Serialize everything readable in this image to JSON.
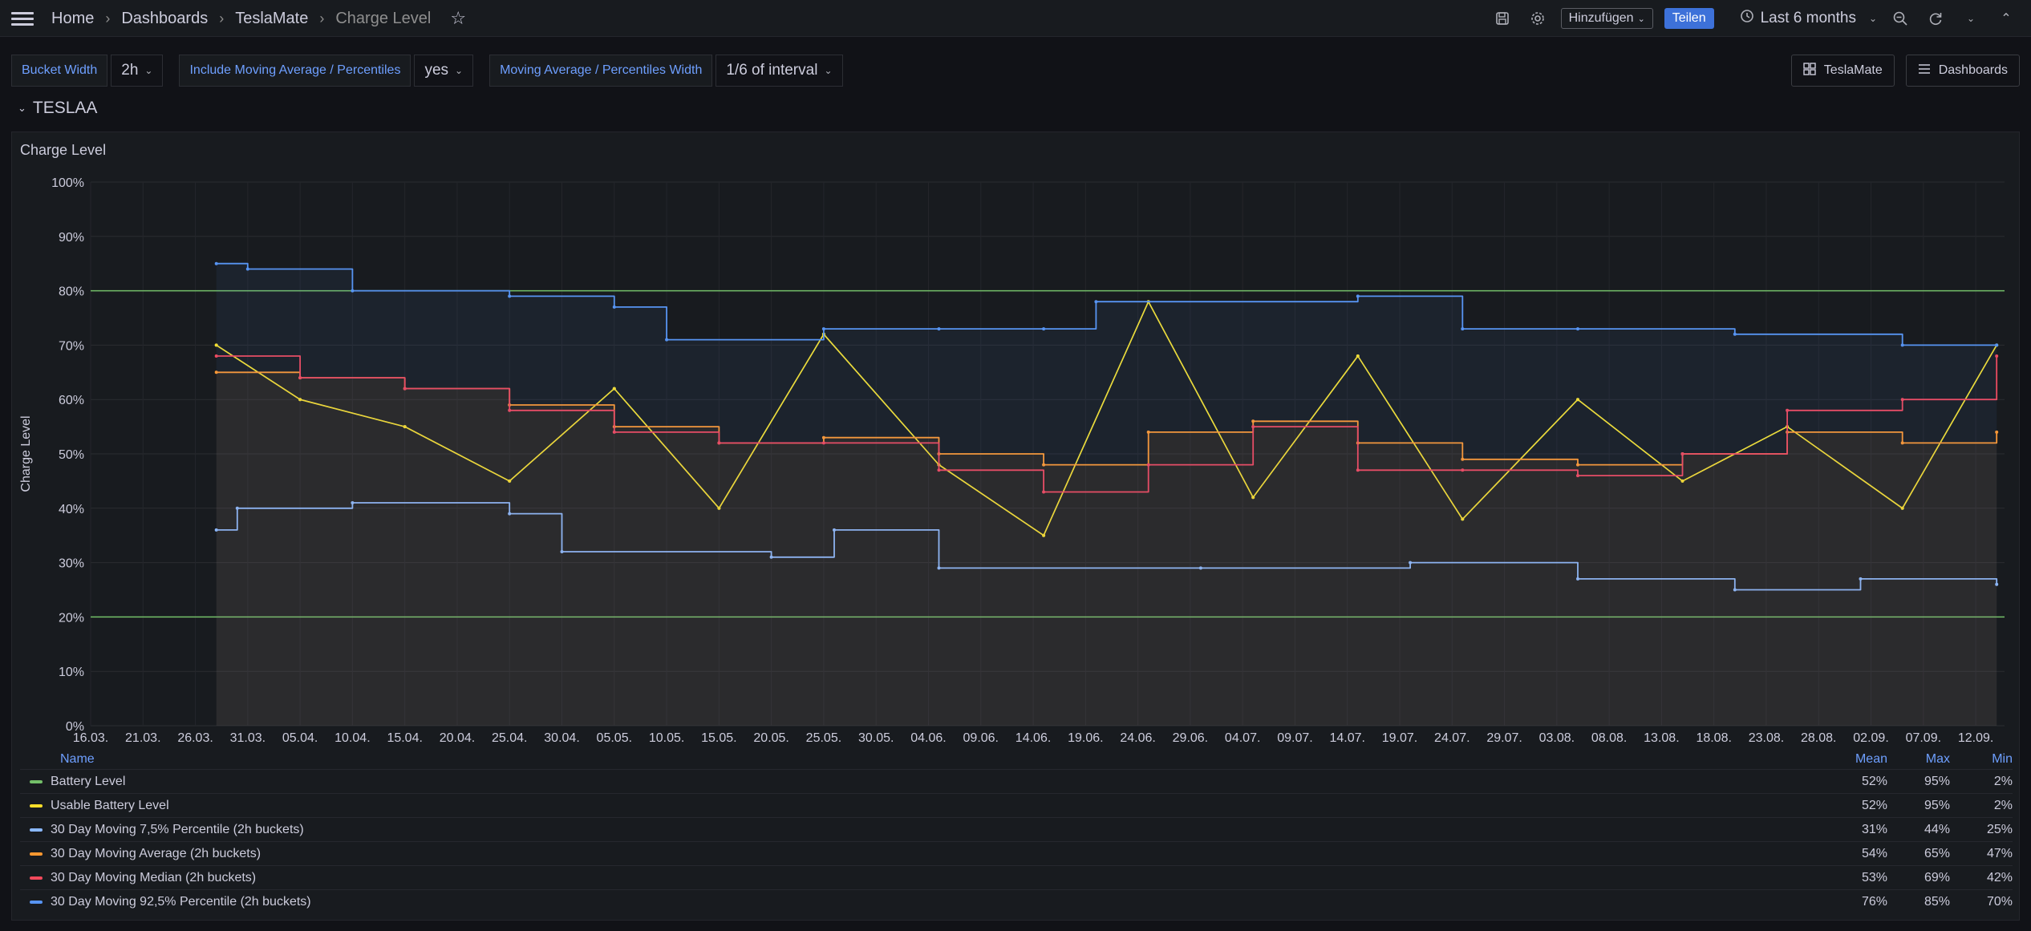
{
  "topbar": {
    "breadcrumbs": [
      "Home",
      "Dashboards",
      "TeslaMate",
      "Charge Level"
    ],
    "add_label": "Hinzufügen",
    "share_label": "Teilen",
    "time_range": "Last 6 months"
  },
  "variables": [
    {
      "label": "Bucket Width",
      "value": "2h"
    },
    {
      "label": "Include Moving Average / Percentiles",
      "value": "yes"
    },
    {
      "label": "Moving Average / Percentiles Width",
      "value": "1/6 of interval"
    }
  ],
  "links": [
    "TeslaMate",
    "Dashboards"
  ],
  "row": {
    "title": "TESLAA"
  },
  "panel": {
    "title": "Charge Level"
  },
  "chart_data": {
    "type": "line",
    "title": "Charge Level",
    "ylabel": "Charge Level",
    "ylim": [
      0,
      100
    ],
    "y_ticks": [
      "0%",
      "10%",
      "20%",
      "30%",
      "40%",
      "50%",
      "60%",
      "70%",
      "80%",
      "90%",
      "100%"
    ],
    "x_ticks": [
      "16.03.",
      "21.03.",
      "26.03.",
      "31.03.",
      "05.04.",
      "10.04.",
      "15.04.",
      "20.04.",
      "25.04.",
      "30.04.",
      "05.05.",
      "10.05.",
      "15.05.",
      "20.05.",
      "25.05.",
      "30.05.",
      "04.06.",
      "09.06.",
      "14.06.",
      "19.06.",
      "24.06.",
      "29.06.",
      "04.07.",
      "09.07.",
      "14.07.",
      "19.07.",
      "24.07.",
      "29.07.",
      "03.08.",
      "08.08.",
      "13.08.",
      "18.08.",
      "23.08.",
      "28.08.",
      "02.09.",
      "07.09.",
      "12.09."
    ],
    "thresholds": [
      20,
      80
    ],
    "series": [
      {
        "name": "Battery Level",
        "color": "#73bf69",
        "x": [
          "28.03.",
          "05.04.",
          "15.04.",
          "25.04.",
          "05.05.",
          "15.05.",
          "25.05.",
          "05.06.",
          "15.06.",
          "25.06.",
          "05.07.",
          "15.07.",
          "25.07.",
          "05.08.",
          "15.08.",
          "25.08.",
          "05.09.",
          "14.09."
        ],
        "values": [
          70,
          60,
          55,
          45,
          62,
          40,
          72,
          48,
          35,
          78,
          42,
          68,
          38,
          60,
          45,
          55,
          40,
          70
        ]
      },
      {
        "name": "Usable Battery Level",
        "color": "#fade2a",
        "x": [
          "28.03.",
          "05.04.",
          "15.04.",
          "25.04.",
          "05.05.",
          "15.05.",
          "25.05.",
          "05.06.",
          "15.06.",
          "25.06.",
          "05.07.",
          "15.07.",
          "25.07.",
          "05.08.",
          "15.08.",
          "25.08.",
          "05.09.",
          "14.09."
        ],
        "values": [
          70,
          60,
          55,
          45,
          62,
          40,
          72,
          48,
          35,
          78,
          42,
          68,
          38,
          60,
          45,
          55,
          40,
          70
        ]
      },
      {
        "name": "30 Day Moving 7,5% Percentile (2h buckets)",
        "color": "#8ab8ff",
        "x": [
          "28.03.",
          "30.03.",
          "10.04.",
          "25.04.",
          "30.04.",
          "20.05.",
          "26.05.",
          "05.06.",
          "30.06.",
          "20.07.",
          "05.08.",
          "20.08.",
          "01.09.",
          "14.09."
        ],
        "values": [
          36,
          40,
          41,
          39,
          32,
          31,
          36,
          29,
          29,
          30,
          27,
          25,
          27,
          26
        ]
      },
      {
        "name": "30 Day Moving Average (2h buckets)",
        "color": "#ff9830",
        "x": [
          "28.03.",
          "05.04.",
          "15.04.",
          "25.04.",
          "05.05.",
          "15.05.",
          "25.05.",
          "05.06.",
          "15.06.",
          "25.06.",
          "05.07.",
          "15.07.",
          "25.07.",
          "05.08.",
          "15.08.",
          "25.08.",
          "05.09.",
          "14.09."
        ],
        "values": [
          65,
          64,
          62,
          59,
          55,
          52,
          53,
          50,
          48,
          54,
          56,
          52,
          49,
          48,
          50,
          54,
          52,
          54
        ]
      },
      {
        "name": "30 Day Moving Median (2h buckets)",
        "color": "#f2495c",
        "x": [
          "28.03.",
          "05.04.",
          "15.04.",
          "25.04.",
          "05.05.",
          "15.05.",
          "25.05.",
          "05.06.",
          "15.06.",
          "25.06.",
          "05.07.",
          "15.07.",
          "25.07.",
          "05.08.",
          "15.08.",
          "25.08.",
          "05.09.",
          "14.09."
        ],
        "values": [
          68,
          64,
          62,
          58,
          54,
          52,
          52,
          47,
          43,
          48,
          55,
          47,
          47,
          46,
          50,
          58,
          60,
          68
        ]
      },
      {
        "name": "30 Day Moving 92,5% Percentile (2h buckets)",
        "color": "#5794f2",
        "x": [
          "28.03.",
          "31.03.",
          "10.04.",
          "25.04.",
          "05.05.",
          "10.05.",
          "25.05.",
          "05.06.",
          "15.06.",
          "20.06.",
          "15.07.",
          "25.07.",
          "05.08.",
          "20.08.",
          "05.09.",
          "14.09."
        ],
        "values": [
          85,
          84,
          80,
          79,
          77,
          71,
          73,
          73,
          73,
          78,
          79,
          73,
          73,
          72,
          70,
          70
        ]
      }
    ]
  },
  "legend": {
    "headers": {
      "name": "Name",
      "mean": "Mean",
      "max": "Max",
      "min": "Min"
    },
    "rows": [
      {
        "name": "Battery Level",
        "mean": "52%",
        "max": "95%",
        "min": "2%",
        "color": "#73bf69"
      },
      {
        "name": "Usable Battery Level",
        "mean": "52%",
        "max": "95%",
        "min": "2%",
        "color": "#fade2a"
      },
      {
        "name": "30 Day Moving 7,5% Percentile (2h buckets)",
        "mean": "31%",
        "max": "44%",
        "min": "25%",
        "color": "#8ab8ff"
      },
      {
        "name": "30 Day Moving Average (2h buckets)",
        "mean": "54%",
        "max": "65%",
        "min": "47%",
        "color": "#ff9830"
      },
      {
        "name": "30 Day Moving Median (2h buckets)",
        "mean": "53%",
        "max": "69%",
        "min": "42%",
        "color": "#f2495c"
      },
      {
        "name": "30 Day Moving 92,5% Percentile (2h buckets)",
        "mean": "76%",
        "max": "85%",
        "min": "70%",
        "color": "#5794f2"
      }
    ]
  }
}
